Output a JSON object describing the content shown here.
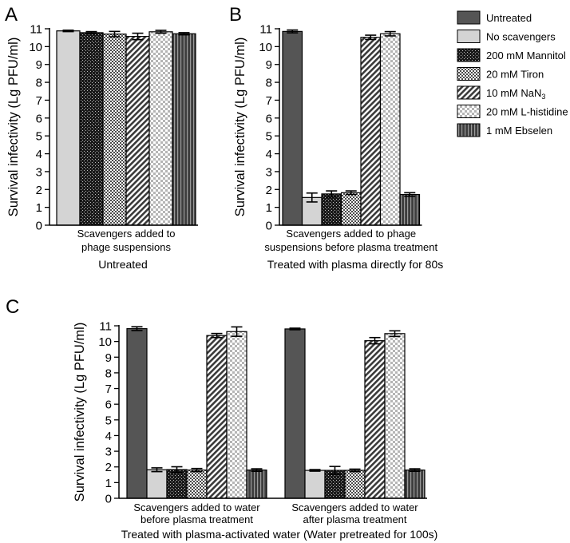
{
  "legend": {
    "items": [
      {
        "key": "untreated",
        "label": "Untreated",
        "pattern": "pat-untreated"
      },
      {
        "key": "none",
        "label": "No scavengers",
        "pattern": "pat-none"
      },
      {
        "key": "mannitol",
        "label": "200 mM Mannitol",
        "pattern": "pat-mannitol"
      },
      {
        "key": "tiron",
        "label": "20 mM Tiron",
        "pattern": "pat-tiron"
      },
      {
        "key": "nan3",
        "label": "10 mM NaN3",
        "pattern": "pat-nan3"
      },
      {
        "key": "histidine",
        "label": "20 mM L-histidine",
        "pattern": "pat-histidine"
      },
      {
        "key": "ebselen",
        "label": "1 mM Ebselen",
        "pattern": "pat-ebselen"
      }
    ]
  },
  "colors": {
    "dark": "#555555",
    "light": "#d4d4d4",
    "black": "#1a1a1a",
    "white": "#ffffff"
  },
  "chart_data": [
    {
      "panel": "A",
      "type": "bar",
      "ylabel": "Survival infectivity (Lg PFU/ml)",
      "ylim": [
        0,
        11
      ],
      "yticks": [
        0,
        1,
        2,
        3,
        4,
        5,
        6,
        7,
        8,
        9,
        10,
        11
      ],
      "grid": false,
      "groups": [
        {
          "label_lines": [
            "Scavengers added to",
            "phage suspensions"
          ],
          "bars": [
            {
              "series": "none",
              "value": 10.88,
              "error": 0.04
            },
            {
              "series": "mannitol",
              "value": 10.78,
              "error": 0.06
            },
            {
              "series": "tiron",
              "value": 10.7,
              "error": 0.15
            },
            {
              "series": "nan3",
              "value": 10.57,
              "error": 0.18
            },
            {
              "series": "histidine",
              "value": 10.83,
              "error": 0.08
            },
            {
              "series": "ebselen",
              "value": 10.72,
              "error": 0.06
            }
          ]
        }
      ],
      "title_lines": [
        "Untreated"
      ]
    },
    {
      "panel": "B",
      "type": "bar",
      "ylabel": "Survival infectivity (Lg PFU/ml)",
      "ylim": [
        0,
        11
      ],
      "yticks": [
        0,
        1,
        2,
        3,
        4,
        5,
        6,
        7,
        8,
        9,
        10,
        11
      ],
      "grid": false,
      "groups": [
        {
          "label_lines": [
            "Scavengers added to phage",
            "suspensions before plasma treatment"
          ],
          "bars": [
            {
              "series": "untreated",
              "value": 10.85,
              "error": 0.08
            },
            {
              "series": "none",
              "value": 1.55,
              "error": 0.25
            },
            {
              "series": "mannitol",
              "value": 1.75,
              "error": 0.17
            },
            {
              "series": "tiron",
              "value": 1.82,
              "error": 0.1
            },
            {
              "series": "nan3",
              "value": 10.52,
              "error": 0.12
            },
            {
              "series": "histidine",
              "value": 10.72,
              "error": 0.12
            },
            {
              "series": "ebselen",
              "value": 1.72,
              "error": 0.1
            }
          ]
        }
      ],
      "title_lines": [
        "Treated with plasma directly for 80s"
      ]
    },
    {
      "panel": "C",
      "type": "bar",
      "ylabel": "Survival infectivity (Lg PFU/ml)",
      "ylim": [
        0,
        11
      ],
      "yticks": [
        0,
        1,
        2,
        3,
        4,
        5,
        6,
        7,
        8,
        9,
        10,
        11
      ],
      "grid": false,
      "groups": [
        {
          "label_lines": [
            "Scavengers added to water",
            "before plasma treatment"
          ],
          "bars": [
            {
              "series": "untreated",
              "value": 10.82,
              "error": 0.12
            },
            {
              "series": "none",
              "value": 1.82,
              "error": 0.12
            },
            {
              "series": "mannitol",
              "value": 1.83,
              "error": 0.18
            },
            {
              "series": "tiron",
              "value": 1.8,
              "error": 0.1
            },
            {
              "series": "nan3",
              "value": 10.38,
              "error": 0.13
            },
            {
              "series": "histidine",
              "value": 10.63,
              "error": 0.3
            },
            {
              "series": "ebselen",
              "value": 1.8,
              "error": 0.08
            }
          ]
        },
        {
          "label_lines": [
            "Scavengers added to water",
            "after plasma treatment"
          ],
          "bars": [
            {
              "series": "untreated",
              "value": 10.8,
              "error": 0.05
            },
            {
              "series": "none",
              "value": 1.78,
              "error": 0.05
            },
            {
              "series": "mannitol",
              "value": 1.78,
              "error": 0.25
            },
            {
              "series": "tiron",
              "value": 1.78,
              "error": 0.08
            },
            {
              "series": "nan3",
              "value": 10.05,
              "error": 0.2
            },
            {
              "series": "histidine",
              "value": 10.5,
              "error": 0.18
            },
            {
              "series": "ebselen",
              "value": 1.8,
              "error": 0.08
            }
          ]
        }
      ],
      "title_lines": [
        "Treated with plasma-activated water (Water pretreated for 100s)"
      ]
    }
  ]
}
